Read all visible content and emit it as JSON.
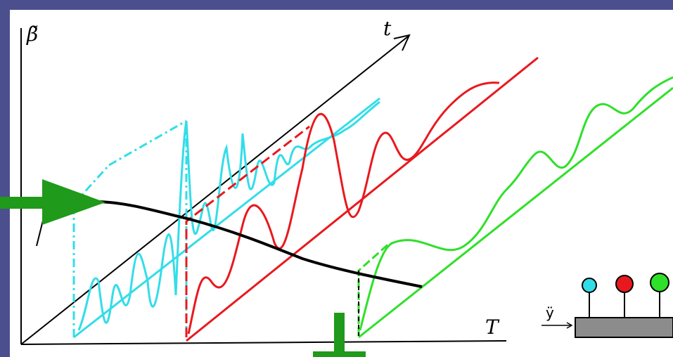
{
  "axes": {
    "y_label": "β̃",
    "t_label": "t",
    "T_label": "T"
  },
  "icon": {
    "input_label": "ÿ"
  }
}
